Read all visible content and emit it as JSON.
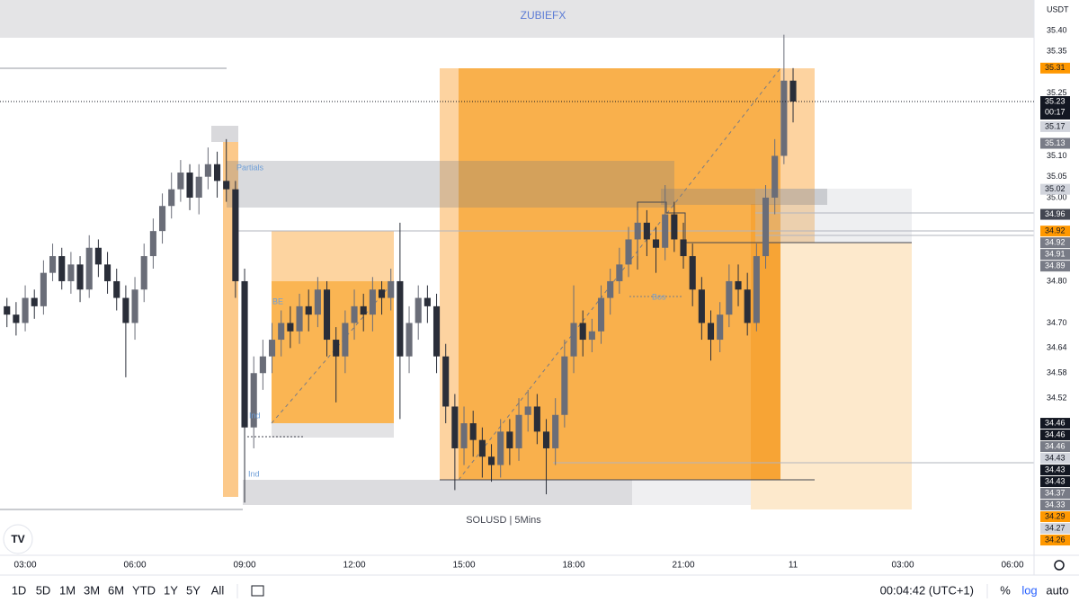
{
  "chart_data": {
    "type": "candlestick",
    "title": "ZUBIEFX",
    "watermark": "SOLUSD | 5Mins",
    "currency": "USDT",
    "x": [
      2.5,
      2.75,
      3,
      3.25,
      3.5,
      3.75,
      4,
      4.25,
      4.5,
      4.75,
      5,
      5.25,
      5.5,
      5.75,
      6,
      6.25,
      6.5,
      6.75,
      7,
      7.25,
      7.5,
      7.75,
      8,
      8.25,
      8.5,
      8.75,
      9,
      9.25,
      9.5,
      9.75,
      10,
      10.25,
      10.5,
      10.75,
      11,
      11.25,
      11.5,
      11.75,
      12,
      12.25,
      12.5,
      12.75,
      13,
      13.25,
      13.5,
      13.75,
      14,
      14.25,
      14.5,
      14.75,
      15,
      15.25,
      15.5,
      15.75,
      16,
      16.25,
      16.5,
      16.75,
      17,
      17.25,
      17.5,
      17.75,
      18,
      18.25,
      18.5,
      18.75,
      19,
      19.25,
      19.5,
      19.75,
      20,
      20.25,
      20.5,
      20.75,
      21,
      21.25,
      21.5,
      21.75,
      22,
      22.25,
      22.5,
      22.75,
      23,
      23.25,
      23.5,
      23.75,
      24
    ],
    "open": [
      34.74,
      34.72,
      34.7,
      34.76,
      34.74,
      34.82,
      34.86,
      34.8,
      34.84,
      34.78,
      34.88,
      34.84,
      34.8,
      34.76,
      34.7,
      34.78,
      34.86,
      34.92,
      34.98,
      35.02,
      35.06,
      35.0,
      35.05,
      35.08,
      35.04,
      35.02,
      34.8,
      34.45,
      34.58,
      34.62,
      34.66,
      34.7,
      34.68,
      34.74,
      34.72,
      34.78,
      34.66,
      34.62,
      34.7,
      34.74,
      34.72,
      34.78,
      34.76,
      34.8,
      34.62,
      34.7,
      34.76,
      34.74,
      34.62,
      34.5,
      34.4,
      34.46,
      34.42,
      34.38,
      34.36,
      34.44,
      34.4,
      34.48,
      34.5,
      34.44,
      34.4,
      34.48,
      34.62,
      34.7,
      34.66,
      34.68,
      34.76,
      34.8,
      34.84,
      34.9,
      34.94,
      34.9,
      34.88,
      34.96,
      34.9,
      34.86,
      34.78,
      34.7,
      34.66,
      34.72,
      34.8,
      34.78,
      34.7,
      34.86,
      35.0,
      35.1,
      35.28
    ],
    "high": [
      34.76,
      34.75,
      34.79,
      34.78,
      34.85,
      34.89,
      34.88,
      34.87,
      34.86,
      34.91,
      34.9,
      34.87,
      34.83,
      34.79,
      34.81,
      34.89,
      34.95,
      35.01,
      35.06,
      35.09,
      35.08,
      35.08,
      35.12,
      35.11,
      35.14,
      35.04,
      34.83,
      34.62,
      34.66,
      34.7,
      34.73,
      34.74,
      34.77,
      34.78,
      34.81,
      34.8,
      34.69,
      34.73,
      34.78,
      34.77,
      34.81,
      34.8,
      34.83,
      34.94,
      34.74,
      34.79,
      34.79,
      34.77,
      34.65,
      34.53,
      34.5,
      34.49,
      34.45,
      34.41,
      34.47,
      34.47,
      34.52,
      34.54,
      34.53,
      34.47,
      34.52,
      34.66,
      34.79,
      34.73,
      34.71,
      34.79,
      34.83,
      34.88,
      34.93,
      34.97,
      34.97,
      34.93,
      35.03,
      34.99,
      34.94,
      34.89,
      34.81,
      34.73,
      34.75,
      34.84,
      34.84,
      34.82,
      34.89,
      35.03,
      35.14,
      35.39,
      35.31
    ],
    "low": [
      34.69,
      34.67,
      34.68,
      34.71,
      34.72,
      34.8,
      34.78,
      34.77,
      34.75,
      34.76,
      34.81,
      34.77,
      34.73,
      34.57,
      34.66,
      34.75,
      34.83,
      34.89,
      34.95,
      34.99,
      34.97,
      34.96,
      35.02,
      35.0,
      34.99,
      34.76,
      34.27,
      34.4,
      34.54,
      34.58,
      34.62,
      34.64,
      34.65,
      34.68,
      34.69,
      34.62,
      34.51,
      34.58,
      34.66,
      34.68,
      34.68,
      34.72,
      34.73,
      34.47,
      34.58,
      34.66,
      34.7,
      34.58,
      34.46,
      34.3,
      34.36,
      34.38,
      34.33,
      34.32,
      34.33,
      34.36,
      34.37,
      34.44,
      34.41,
      34.29,
      34.36,
      34.45,
      34.58,
      34.62,
      34.63,
      34.65,
      34.72,
      34.77,
      34.81,
      34.86,
      34.86,
      34.82,
      34.85,
      34.87,
      34.83,
      34.74,
      34.66,
      34.61,
      34.63,
      34.69,
      34.74,
      34.67,
      34.68,
      34.83,
      34.96,
      35.08,
      35.18
    ],
    "close": [
      34.72,
      34.7,
      34.76,
      34.74,
      34.82,
      34.86,
      34.8,
      34.84,
      34.78,
      34.88,
      34.84,
      34.8,
      34.76,
      34.7,
      34.78,
      34.86,
      34.92,
      34.98,
      35.02,
      35.06,
      35.0,
      35.05,
      35.08,
      35.04,
      35.02,
      34.8,
      34.45,
      34.58,
      34.62,
      34.66,
      34.7,
      34.68,
      34.74,
      34.72,
      34.78,
      34.66,
      34.62,
      34.7,
      34.74,
      34.72,
      34.78,
      34.76,
      34.8,
      34.62,
      34.7,
      34.76,
      34.74,
      34.62,
      34.5,
      34.4,
      34.46,
      34.42,
      34.38,
      34.36,
      34.44,
      34.4,
      34.48,
      34.5,
      34.44,
      34.4,
      34.48,
      34.62,
      34.7,
      34.66,
      34.68,
      34.76,
      34.8,
      34.84,
      34.9,
      34.94,
      34.9,
      34.88,
      34.96,
      34.9,
      34.86,
      34.78,
      34.7,
      34.66,
      34.72,
      34.8,
      34.78,
      34.7,
      34.86,
      35.0,
      35.1,
      35.28,
      35.23
    ],
    "up_color": "#6a6d78",
    "down_color": "#2a2e39",
    "xlim": [
      2.31,
      30.59
    ],
    "xticks": [
      {
        "value": 3,
        "label": "03:00"
      },
      {
        "value": 6,
        "label": "06:00"
      },
      {
        "value": 9,
        "label": "09:00"
      },
      {
        "value": 12,
        "label": "12:00"
      },
      {
        "value": 15,
        "label": "15:00"
      },
      {
        "value": 18,
        "label": "18:00"
      },
      {
        "value": 21,
        "label": "21:00"
      },
      {
        "value": 24,
        "label": "11"
      },
      {
        "value": 27,
        "label": "03:00"
      },
      {
        "value": 30,
        "label": "06:00"
      }
    ],
    "ylim": [
      34.144,
      35.473
    ],
    "yticks": [
      {
        "value": 35.4,
        "label": "35.40"
      },
      35.35,
      35.25,
      {
        "value": 35.1,
        "label": "35.10"
      },
      35.05,
      {
        "value": 35,
        "label": "35.00"
      },
      {
        "value": 34.8,
        "label": "34.80"
      },
      {
        "value": 34.7,
        "label": "34.70"
      },
      34.64,
      34.58,
      34.52
    ],
    "price_badges": [
      {
        "value": 35.31,
        "color": "#ff9800"
      },
      {
        "value": 35.23,
        "color": "#131722"
      },
      {
        "value": 35.17,
        "color": "#d1d4dc"
      },
      {
        "value": 35.13,
        "color": "#787b86"
      },
      {
        "value": 35.02,
        "color": "#d1d4dc"
      },
      {
        "value": 34.96,
        "color": "#434651"
      },
      {
        "value": 34.92,
        "color": "#ff9800"
      },
      {
        "value": 34.92,
        "color": "#787b86"
      },
      {
        "value": 34.91,
        "color": "#787b86"
      },
      {
        "value": 34.89,
        "color": "#787b86"
      },
      {
        "value": 34.46,
        "color": "#131722"
      },
      {
        "value": 34.46,
        "color": "#131722"
      },
      {
        "value": 34.46,
        "color": "#787b86"
      },
      {
        "value": 34.43,
        "color": "#d1d4dc"
      },
      {
        "value": 34.43,
        "color": "#131722"
      },
      {
        "value": 34.43,
        "color": "#131722"
      },
      {
        "value": 34.37,
        "color": "#787b86"
      },
      {
        "value": 34.33,
        "color": "#787b86"
      },
      {
        "value": 34.29,
        "color": "#ff9800"
      },
      {
        "value": 34.27,
        "color": "#d1d4dc"
      },
      {
        "value": 34.26,
        "color": "#ff9800"
      }
    ],
    "countdown": "00:17",
    "annotations": [
      "Partials",
      "BE",
      "Ind",
      "Ind",
      "Bos"
    ]
  },
  "toolbar": {
    "ranges": [
      "1D",
      "5D",
      "1M",
      "3M",
      "6M",
      "YTD",
      "1Y",
      "5Y",
      "All"
    ],
    "clock": "00:04:42 (UTC+1)",
    "percent": "%",
    "log": "log",
    "auto": "auto"
  }
}
